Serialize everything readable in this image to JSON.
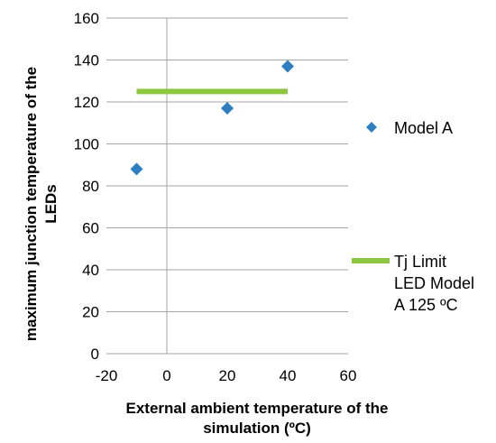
{
  "chart_data": {
    "type": "scatter",
    "xlabel": [
      "External ambient temperature of the",
      "simulation (ºC)"
    ],
    "ylabel": [
      "maximum junction temperature of the",
      "LEDs"
    ],
    "xlim": [
      -20,
      60
    ],
    "ylim": [
      0,
      160
    ],
    "xticks": [
      -20,
      0,
      20,
      40,
      60
    ],
    "yticks": [
      0,
      20,
      40,
      60,
      80,
      100,
      120,
      140,
      160
    ],
    "grid": "horizontal",
    "legend_position": "right",
    "series": [
      {
        "name": "Model A",
        "kind": "scatter",
        "marker": "diamond",
        "color": "#2E7FC2",
        "points": [
          {
            "x": -10,
            "y": 88
          },
          {
            "x": 20,
            "y": 117
          },
          {
            "x": 40,
            "y": 137
          }
        ]
      },
      {
        "name_lines": [
          "Tj Limit",
          "LED Model",
          "A 125 ºC"
        ],
        "kind": "line",
        "color": "#8DC63F",
        "points": [
          {
            "x": -10,
            "y": 125
          },
          {
            "x": 40,
            "y": 125
          }
        ]
      }
    ]
  }
}
